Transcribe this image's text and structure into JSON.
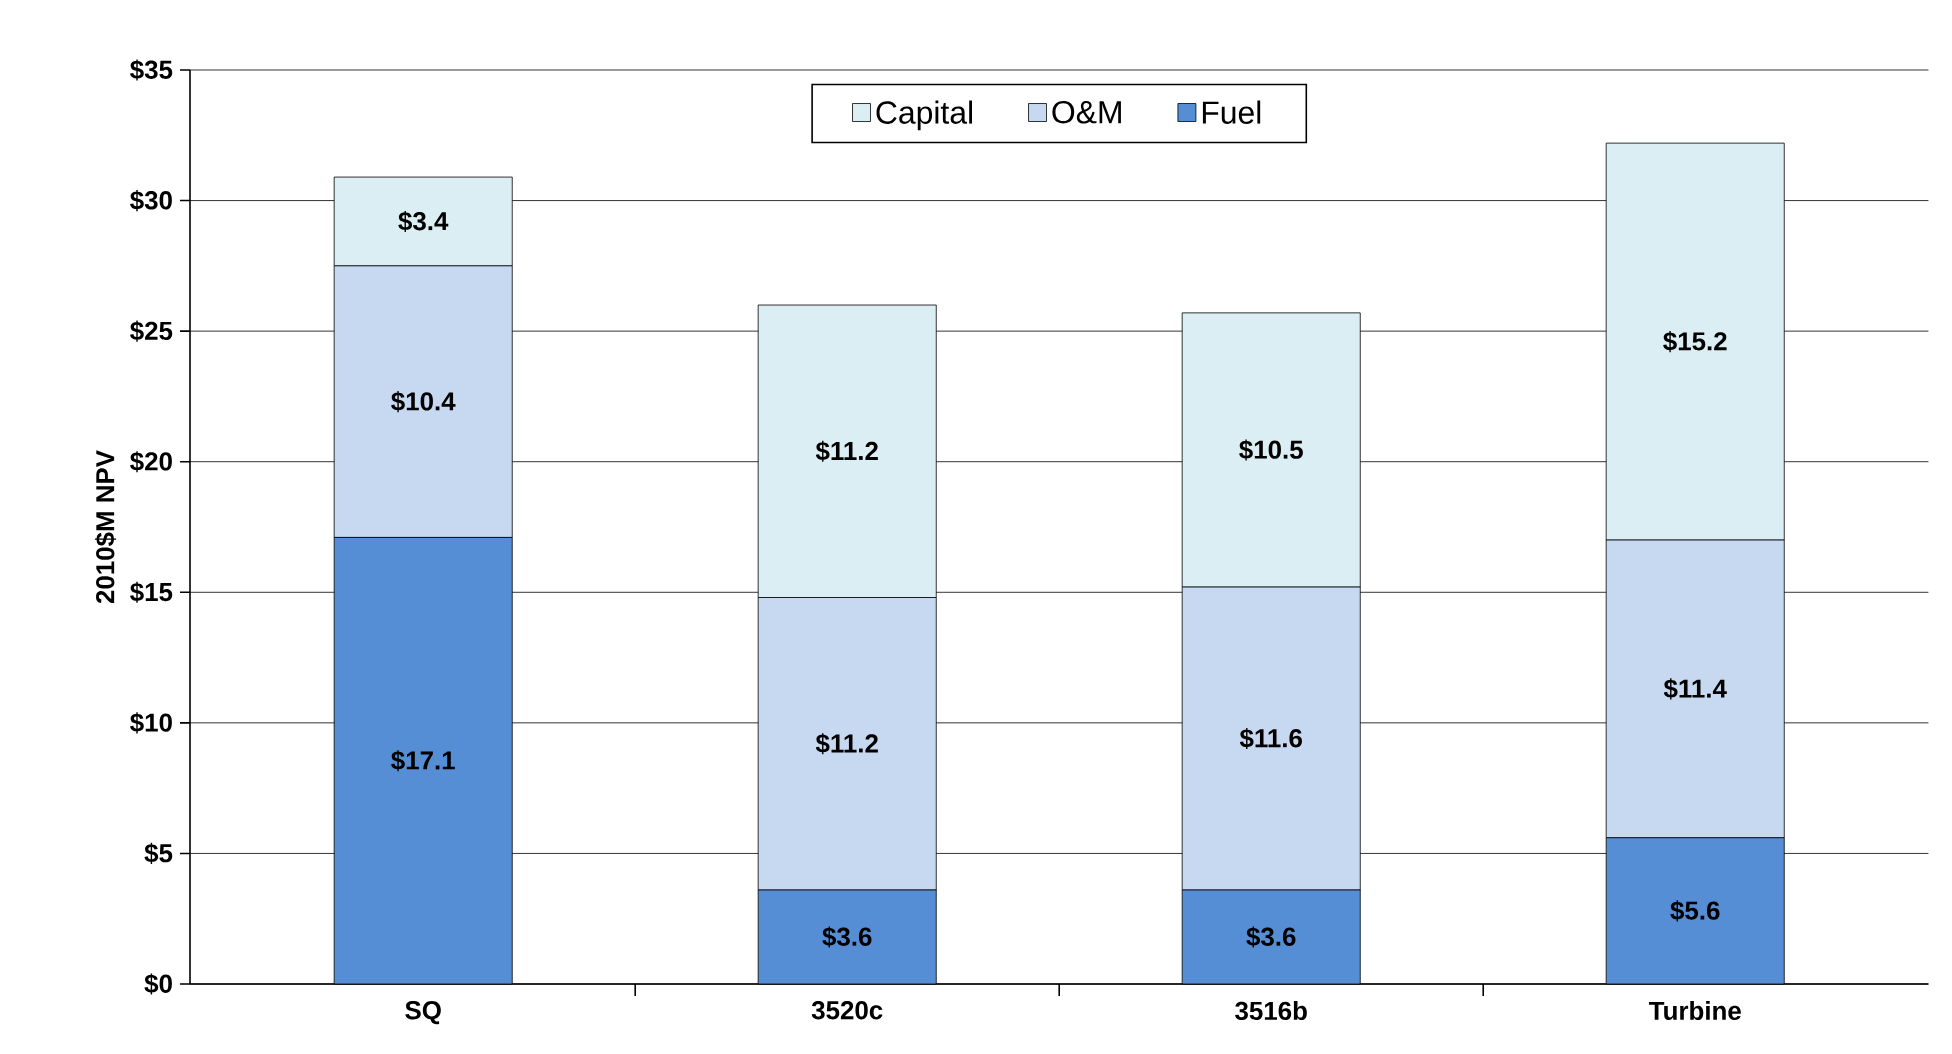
{
  "chart_data": {
    "type": "bar",
    "stacked": true,
    "ylabel": "2010$M NPV",
    "categories": [
      "SQ",
      "3520c",
      "3516b",
      "Turbine"
    ],
    "series": [
      {
        "name": "Fuel",
        "color": "#558ed5",
        "values": [
          17.1,
          3.6,
          3.6,
          5.6
        ],
        "value_labels": [
          "$17.1",
          "$3.6",
          "$3.6",
          "$5.6"
        ]
      },
      {
        "name": "O&M",
        "color": "#c6d9f1",
        "values": [
          10.4,
          11.2,
          11.6,
          11.4
        ],
        "value_labels": [
          "$10.4",
          "$11.2",
          "$11.6",
          "$11.4"
        ]
      },
      {
        "name": "Capital",
        "color": "#dbeef4",
        "values": [
          3.4,
          11.2,
          10.5,
          15.2
        ],
        "value_labels": [
          "$3.4",
          "$11.2",
          "$10.5",
          "$15.2"
        ]
      }
    ],
    "ylim": [
      0,
      35
    ],
    "yticks": [
      {
        "value": 0,
        "label": "$0"
      },
      {
        "value": 5,
        "label": "$5"
      },
      {
        "value": 10,
        "label": "$10"
      },
      {
        "value": 15,
        "label": "$15"
      },
      {
        "value": 20,
        "label": "$20"
      },
      {
        "value": 25,
        "label": "$25"
      },
      {
        "value": 30,
        "label": "$30"
      },
      {
        "value": 35,
        "label": "$35"
      }
    ],
    "grid": "y",
    "legend": "top"
  }
}
